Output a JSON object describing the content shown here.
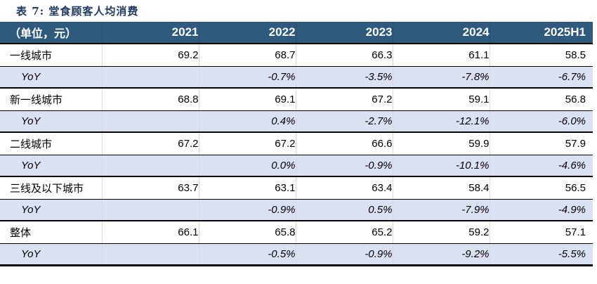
{
  "title": "表 7: 堂食顾客人均消费",
  "colors": {
    "title_text": "#1F3A60",
    "header_bg": "#2E5A7E",
    "header_text": "#FFFFFF",
    "yoy_row_bg": "#DAE1F2",
    "border": "#000000"
  },
  "table": {
    "unit_label": "（单位，元）",
    "columns": [
      "2021",
      "2022",
      "2023",
      "2024",
      "2025H1"
    ],
    "yoy_label": "YoY",
    "groups": [
      {
        "name": "一线城市",
        "values": [
          "69.2",
          "68.7",
          "66.3",
          "61.1",
          "58.5"
        ],
        "yoy": [
          "",
          "-0.7%",
          "-3.5%",
          "-7.8%",
          "-6.7%"
        ]
      },
      {
        "name": "新一线城市",
        "values": [
          "68.8",
          "69.1",
          "67.2",
          "59.1",
          "56.8"
        ],
        "yoy": [
          "",
          "0.4%",
          "-2.7%",
          "-12.1%",
          "-6.0%"
        ]
      },
      {
        "name": "二线城市",
        "values": [
          "67.2",
          "67.2",
          "66.6",
          "59.9",
          "57.9"
        ],
        "yoy": [
          "",
          "0.0%",
          "-0.9%",
          "-10.1%",
          "-4.6%"
        ]
      },
      {
        "name": "三线及以下城市",
        "values": [
          "63.7",
          "63.1",
          "63.4",
          "58.4",
          "56.5"
        ],
        "yoy": [
          "",
          "-0.9%",
          "0.5%",
          "-7.9%",
          "-4.9%"
        ]
      },
      {
        "name": "整体",
        "values": [
          "66.1",
          "65.8",
          "65.2",
          "59.2",
          "57.1"
        ],
        "yoy": [
          "",
          "-0.5%",
          "-0.9%",
          "-9.2%",
          "-5.5%"
        ]
      }
    ]
  },
  "chart_data": {
    "type": "table",
    "title": "表 7: 堂食顾客人均消费",
    "unit": "元",
    "columns": [
      "2021",
      "2022",
      "2023",
      "2024",
      "2025H1"
    ],
    "rows": [
      {
        "label": "一线城市",
        "values": [
          69.2,
          68.7,
          66.3,
          61.1,
          58.5
        ],
        "yoy_percent": [
          null,
          -0.7,
          -3.5,
          -7.8,
          -6.7
        ]
      },
      {
        "label": "新一线城市",
        "values": [
          68.8,
          69.1,
          67.2,
          59.1,
          56.8
        ],
        "yoy_percent": [
          null,
          0.4,
          -2.7,
          -12.1,
          -6.0
        ]
      },
      {
        "label": "二线城市",
        "values": [
          67.2,
          67.2,
          66.6,
          59.9,
          57.9
        ],
        "yoy_percent": [
          null,
          0.0,
          -0.9,
          -10.1,
          -4.6
        ]
      },
      {
        "label": "三线及以下城市",
        "values": [
          63.7,
          63.1,
          63.4,
          58.4,
          56.5
        ],
        "yoy_percent": [
          null,
          -0.9,
          0.5,
          -7.9,
          -4.9
        ]
      },
      {
        "label": "整体",
        "values": [
          66.1,
          65.8,
          65.2,
          59.2,
          57.1
        ],
        "yoy_percent": [
          null,
          -0.5,
          -0.9,
          -9.2,
          -5.5
        ]
      }
    ]
  }
}
